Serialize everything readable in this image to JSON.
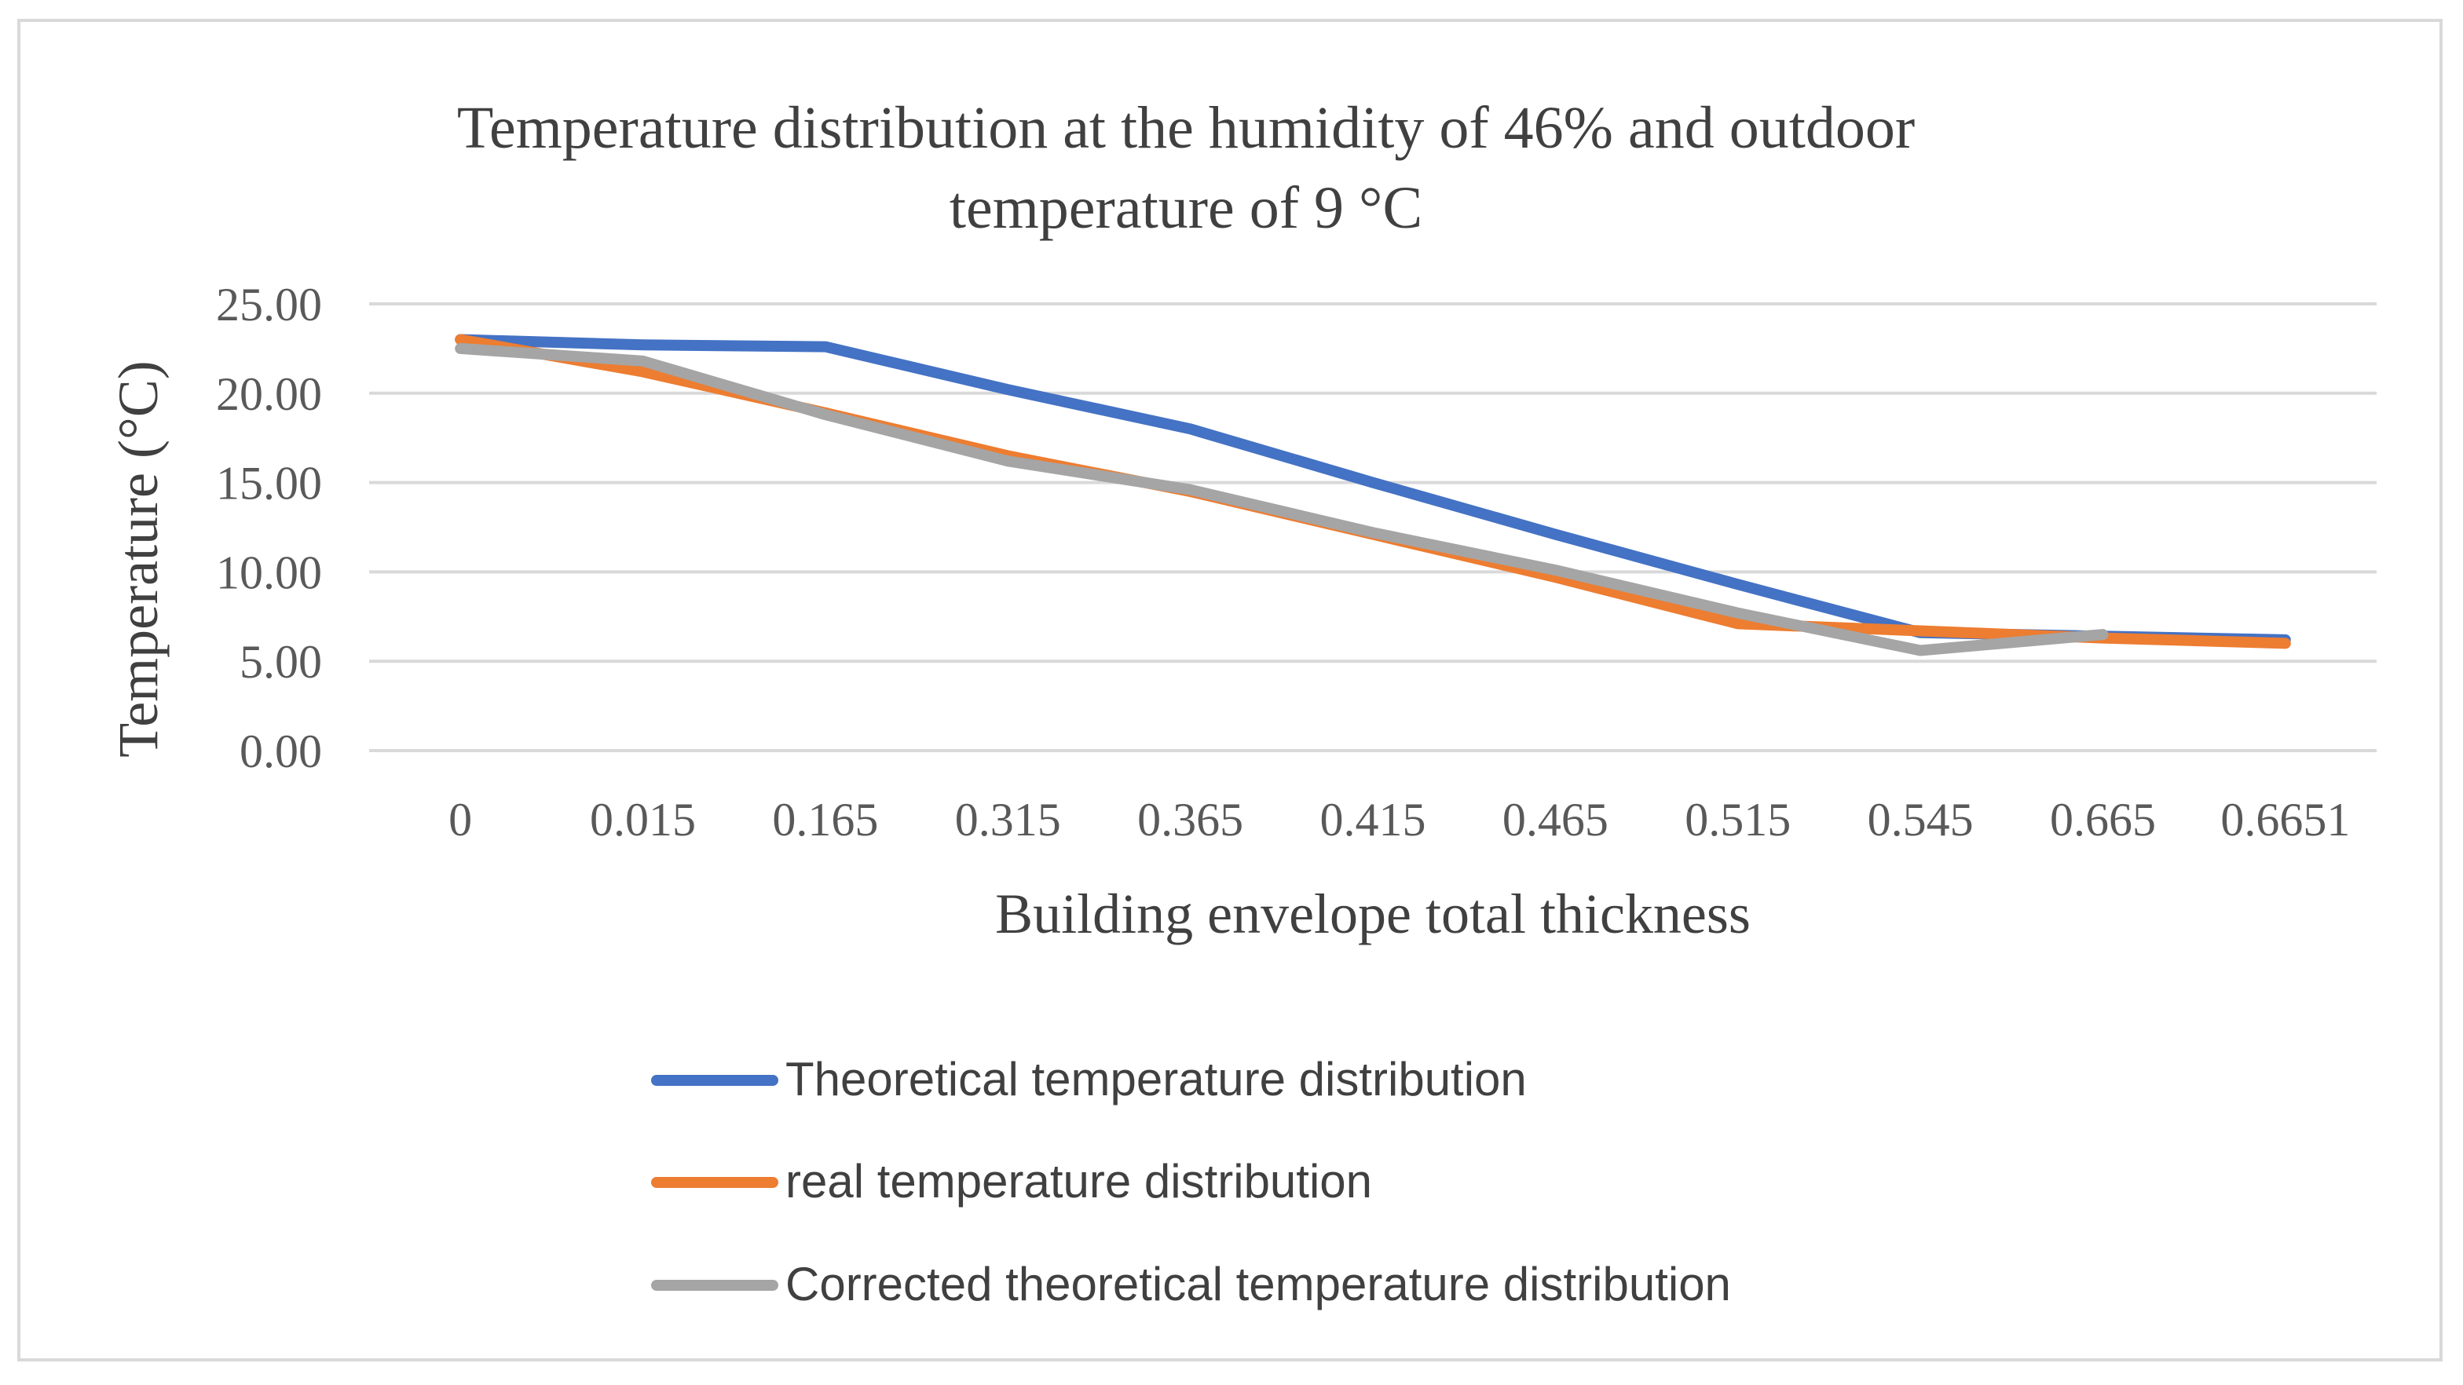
{
  "chart_data": {
    "type": "line",
    "title_lines": [
      "Temperature distribution at the humidity of 46% and outdoor",
      "temperature of 9 °C"
    ],
    "xlabel": "Building envelope total thickness",
    "ylabel": "Temperature (°C)",
    "categories": [
      "0",
      "0.015",
      "0.165",
      "0.315",
      "0.365",
      "0.415",
      "0.465",
      "0.515",
      "0.545",
      "0.665",
      "0.6651"
    ],
    "ylim": [
      0,
      25
    ],
    "yticks": [
      "0.00",
      "5.00",
      "10.00",
      "15.00",
      "20.00",
      "25.00"
    ],
    "ytick_values": [
      0,
      5,
      10,
      15,
      20,
      25
    ],
    "grid": true,
    "legend_position": "bottom",
    "series": [
      {
        "name": "Theoretical temperature distribution",
        "color": "#4472c4",
        "values": [
          23.0,
          22.7,
          22.6,
          20.2,
          18.0,
          15.0,
          12.1,
          9.3,
          6.6,
          6.4,
          6.2
        ]
      },
      {
        "name": "real temperature distribution",
        "color": "#ed7d31",
        "values": [
          23.0,
          21.2,
          18.9,
          16.5,
          14.5,
          12.1,
          9.7,
          7.1,
          6.7,
          6.3,
          6.0
        ]
      },
      {
        "name": "Corrected theoretical temperature distribution",
        "color": "#a5a5a5",
        "values": [
          22.5,
          21.8,
          18.8,
          16.2,
          14.6,
          12.2,
          10.1,
          7.7,
          5.6,
          6.5,
          null
        ]
      }
    ]
  }
}
